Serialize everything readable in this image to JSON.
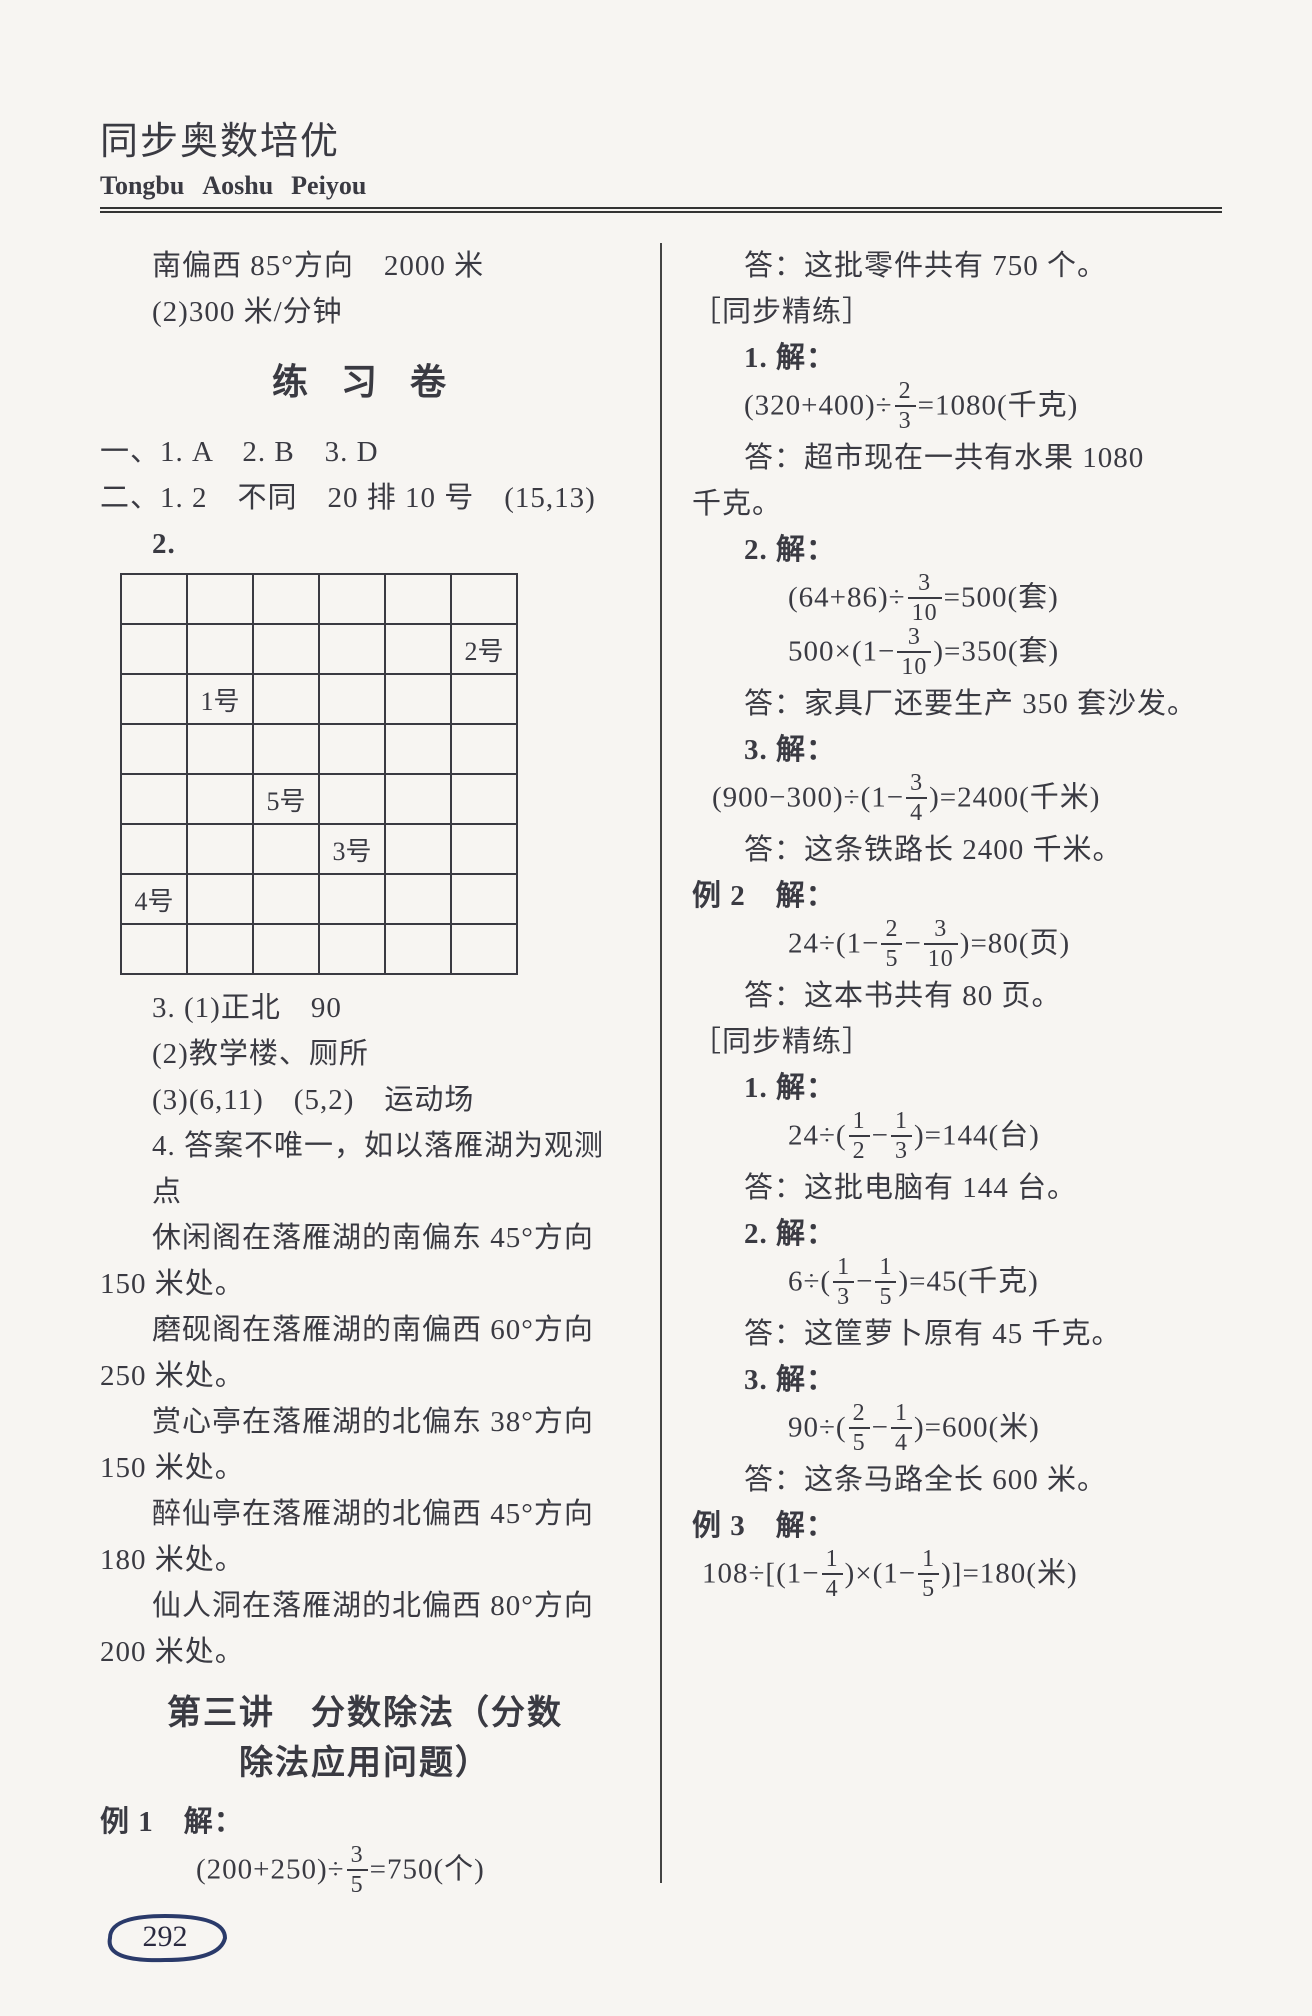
{
  "header": {
    "title_cn": "同步奥数培优",
    "pinyin_parts": [
      "Tongbu",
      "Aoshu",
      "Peiyou"
    ]
  },
  "page_number": "292",
  "left": {
    "top_lines": [
      "南偏西 85°方向　2000 米",
      "(2)300 米/分钟"
    ],
    "practice_heading": "练 习 卷",
    "q1": "一、1. A　2. B　3. D",
    "q2a": "二、1. 2　不同　20 排 10 号　(15,13)",
    "q2b": "2.",
    "grid": {
      "rows": 8,
      "cols": 6,
      "cells": {
        "1,5": "2号",
        "2,1": "1号",
        "4,2": "5号",
        "5,3": "3号",
        "6,0": "4号"
      },
      "border_color": "#3a3a42"
    },
    "q3_lines": [
      "3. (1)正北　90",
      "(2)教学楼、厕所",
      "(3)(6,11)　(5,2)　运动场"
    ],
    "q4_intro": "4. 答案不唯一，如以落雁湖为观测点",
    "q4_lines": [
      "休闲阁在落雁湖的南偏东 45°方向",
      "150 米处。",
      "磨砚阁在落雁湖的南偏西 60°方向",
      "250 米处。",
      "赏心亭在落雁湖的北偏东 38°方向",
      "150 米处。",
      "醉仙亭在落雁湖的北偏西 45°方向",
      "180 米处。",
      "仙人洞在落雁湖的北偏西 80°方向",
      "200 米处。"
    ],
    "lecture_title_1": "第三讲　分数除法（分数",
    "lecture_title_2": "除法应用问题）",
    "ex1_label": "例 1　解：",
    "ex1_expr": {
      "prefix": "(200+250)÷",
      "num": "3",
      "den": "5",
      "suffix": "=750(个)"
    }
  },
  "right": {
    "ans_intro": "答：这批零件共有 750 个。",
    "sync_label": "［同步精练］",
    "p1_label": "1. 解：",
    "p1_expr": {
      "prefix": "(320+400)÷",
      "num": "2",
      "den": "3",
      "suffix": "=1080(千克)"
    },
    "p1_ans1": "答：超市现在一共有水果 1080",
    "p1_ans2": "千克。",
    "p2_label": "2. 解：",
    "p2_expr1": {
      "prefix": "(64+86)÷",
      "num": "3",
      "den": "10",
      "suffix": "=500(套)"
    },
    "p2_expr2": {
      "prefix": "500×(1−",
      "num": "3",
      "den": "10",
      "suffix": ")=350(套)"
    },
    "p2_ans": "答：家具厂还要生产 350 套沙发。",
    "p3_label": "3. 解：",
    "p3_expr": {
      "prefix": "(900−300)÷(1−",
      "num": "3",
      "den": "4",
      "suffix": ")=2400(千米)"
    },
    "p3_ans": "答：这条铁路长 2400 千米。",
    "ex2_label": "例 2　解：",
    "ex2_expr": {
      "prefix": "24÷(1−",
      "n1": "2",
      "d1": "5",
      "mid": "−",
      "n2": "3",
      "d2": "10",
      "suffix": ")=80(页)"
    },
    "ex2_ans": "答：这本书共有 80 页。",
    "sync_label2": "［同步精练］",
    "r1_label": "1. 解：",
    "r1_expr": {
      "prefix": "24÷(",
      "n1": "1",
      "d1": "2",
      "mid": "−",
      "n2": "1",
      "d2": "3",
      "suffix": ")=144(台)"
    },
    "r1_ans": "答：这批电脑有 144 台。",
    "r2_label": "2. 解：",
    "r2_expr": {
      "prefix": "6÷(",
      "n1": "1",
      "d1": "3",
      "mid": "−",
      "n2": "1",
      "d2": "5",
      "suffix": ")=45(千克)"
    },
    "r2_ans": "答：这筐萝卜原有 45 千克。",
    "r3_label": "3. 解：",
    "r3_expr": {
      "prefix": "90÷(",
      "n1": "2",
      "d1": "5",
      "mid": "−",
      "n2": "1",
      "d2": "4",
      "suffix": ")=600(米)"
    },
    "r3_ans": "答：这条马路全长 600 米。",
    "ex3_label": "例 3　解：",
    "ex3_expr": {
      "prefix": "108÷[(1−",
      "n1": "1",
      "d1": "4",
      "mid": ")×(1−",
      "n2": "1",
      "d2": "5",
      "suffix": ")]=180(米)"
    }
  },
  "colors": {
    "text": "#3a3a42",
    "rule": "#333333",
    "page_bg": "#f7f5f2",
    "badge_stroke": "#2a3a6a"
  }
}
